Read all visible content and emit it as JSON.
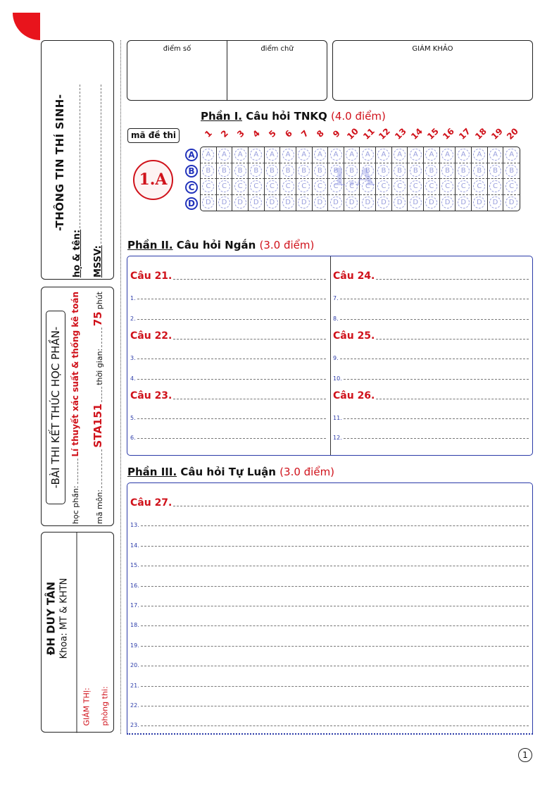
{
  "student_info": {
    "title": "-THÔNG TIN THÍ SINH-",
    "name_label": "họ & tên:",
    "id_label": "MSSV:"
  },
  "exam_info": {
    "title": "-BÀI THI KẾT THÚC HỌC PHẦN-",
    "course_label": "học phần:",
    "course_value": "Lí thuyết xác suất & thống kê toán",
    "code_label": "mã môn:",
    "code_value": "STA151",
    "time_label": "thời gian:",
    "time_value": "75",
    "time_unit": "phút"
  },
  "school": {
    "name": "ĐH DUY TÂN",
    "faculty": "Khoa: MT & KHTN",
    "proctor_label": "GIÁM THỊ:",
    "room_label": "phòng thi:"
  },
  "scores": {
    "score_num": "điểm số",
    "score_text": "điểm chữ",
    "examiner": "GIÁM KHẢO"
  },
  "part1": {
    "title": "Phần I.",
    "subtitle": "Câu hỏi TNKQ",
    "points": "(4.0 điểm)",
    "exam_code_label": "mã đề thi",
    "exam_code": "1.A",
    "watermark": "1.A",
    "questions": [
      "1",
      "2",
      "3",
      "4",
      "5",
      "6",
      "7",
      "8",
      "9",
      "10",
      "11",
      "12",
      "13",
      "14",
      "15",
      "16",
      "17",
      "18",
      "19",
      "20"
    ],
    "options": [
      "A",
      "B",
      "C",
      "D"
    ]
  },
  "part2": {
    "title": "Phần II.",
    "subtitle": "Câu hỏi Ngắn",
    "points": "(3.0 điểm)",
    "left": [
      {
        "q": "Câu 21.",
        "lines": [
          "1.",
          "2."
        ]
      },
      {
        "q": "Câu 22.",
        "lines": [
          "3.",
          "4."
        ]
      },
      {
        "q": "Câu 23.",
        "lines": [
          "5.",
          "6."
        ]
      }
    ],
    "right": [
      {
        "q": "Câu 24.",
        "lines": [
          "7.",
          "8."
        ]
      },
      {
        "q": "Câu 25.",
        "lines": [
          "9.",
          "10."
        ]
      },
      {
        "q": "Câu 26.",
        "lines": [
          "11.",
          "12."
        ]
      }
    ]
  },
  "part3": {
    "title": "Phần III.",
    "subtitle": "Câu hỏi Tự Luận",
    "points": "(3.0 điểm)",
    "q": "Câu 27.",
    "lines": [
      "13.",
      "14.",
      "15.",
      "16.",
      "17.",
      "18.",
      "19.",
      "20.",
      "21.",
      "22.",
      "23."
    ]
  },
  "page_number": "1",
  "colors": {
    "accent_red": "#d0121b",
    "accent_blue": "#2a3aa8"
  }
}
